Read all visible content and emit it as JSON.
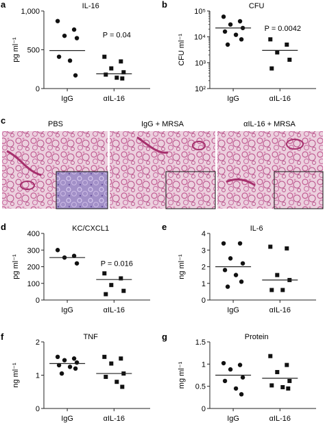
{
  "chart_data": [
    {
      "id": "a",
      "panel_letter": "a",
      "type": "scatter",
      "title": "IL-16",
      "ylabel": "pg ml⁻¹",
      "scale": "linear",
      "ylim": [
        0,
        1000
      ],
      "yticks": [
        0,
        500,
        1000
      ],
      "ytick_labels": [
        "0",
        "500",
        "1,000"
      ],
      "categories": [
        "IgG",
        "αIL-16"
      ],
      "series": [
        {
          "name": "IgG",
          "marker": "circle",
          "values": [
            870,
            760,
            680,
            650,
            410,
            360,
            170
          ],
          "mean": 490
        },
        {
          "name": "αIL-16",
          "marker": "square",
          "values": [
            410,
            350,
            260,
            210,
            180,
            140,
            130
          ],
          "mean": 190
        }
      ],
      "annotation": {
        "text": "P = 0.04",
        "series": 1,
        "value": 660
      }
    },
    {
      "id": "b",
      "panel_letter": "b",
      "type": "scatter",
      "title": "CFU",
      "ylabel": "CFU ml⁻¹",
      "scale": "log",
      "ylim": [
        100,
        100000
      ],
      "yticks": [
        100,
        1000,
        10000,
        100000
      ],
      "ytick_labels": [
        "10²",
        "10³",
        "10⁴",
        "10⁵"
      ],
      "categories": [
        "IgG",
        "αIL-16"
      ],
      "series": [
        {
          "name": "IgG",
          "marker": "circle",
          "values": [
            60000,
            40000,
            30000,
            22000,
            16000,
            12000,
            8000,
            5000
          ],
          "mean": 22000
        },
        {
          "name": "αIL-16",
          "marker": "square",
          "values": [
            8000,
            5000,
            2500,
            1300,
            600
          ],
          "mean": 3000
        }
      ],
      "annotation": {
        "text": "P = 0.0042",
        "series": 1,
        "value": 17000
      }
    },
    {
      "id": "d",
      "panel_letter": "d",
      "type": "scatter",
      "title": "KC/CXCL1",
      "ylabel": "pg ml⁻¹",
      "scale": "linear",
      "ylim": [
        0,
        400
      ],
      "yticks": [
        0,
        100,
        200,
        300,
        400
      ],
      "ytick_labels": [
        "0",
        "100",
        "200",
        "300",
        "400"
      ],
      "categories": [
        "IgG",
        "αIL-16"
      ],
      "series": [
        {
          "name": "IgG",
          "marker": "circle",
          "values": [
            300,
            265,
            255,
            220
          ],
          "mean": 255
        },
        {
          "name": "αIL-16",
          "marker": "square",
          "values": [
            160,
            130,
            90,
            55,
            35
          ],
          "mean": 123
        }
      ],
      "annotation": {
        "text": "P = 0.016",
        "series": 1,
        "value": 205
      }
    },
    {
      "id": "e",
      "panel_letter": "e",
      "type": "scatter",
      "title": "IL-6",
      "ylabel": "ng ml⁻¹",
      "scale": "linear",
      "ylim": [
        0,
        4
      ],
      "yticks": [
        0,
        1,
        2,
        3,
        4
      ],
      "ytick_labels": [
        "0",
        "1",
        "2",
        "3",
        "4"
      ],
      "categories": [
        "IgG",
        "αIL-16"
      ],
      "series": [
        {
          "name": "IgG",
          "marker": "circle",
          "values": [
            3.4,
            3.4,
            2.5,
            2.2,
            1.8,
            1.5,
            1.1,
            0.8
          ],
          "mean": 2.0
        },
        {
          "name": "αIL-16",
          "marker": "square",
          "values": [
            3.2,
            3.1,
            1.5,
            1.2,
            0.6,
            0.6
          ],
          "mean": 1.2
        }
      ],
      "annotation": null
    },
    {
      "id": "f",
      "panel_letter": "f",
      "type": "scatter",
      "title": "TNF",
      "ylabel": "ng ml⁻¹",
      "scale": "linear",
      "ylim": [
        0,
        2
      ],
      "yticks": [
        0,
        1,
        2
      ],
      "ytick_labels": [
        "0",
        "1",
        "2"
      ],
      "categories": [
        "IgG",
        "αIL-16"
      ],
      "series": [
        {
          "name": "IgG",
          "marker": "circle",
          "values": [
            1.55,
            1.5,
            1.45,
            1.38,
            1.3,
            1.25,
            1.2,
            1.05
          ],
          "mean": 1.35
        },
        {
          "name": "αIL-16",
          "marker": "square",
          "values": [
            1.55,
            1.5,
            1.35,
            1.05,
            0.95,
            0.8,
            0.65
          ],
          "mean": 1.05
        }
      ],
      "annotation": null
    },
    {
      "id": "g",
      "panel_letter": "g",
      "type": "scatter",
      "title": "Protein",
      "ylabel": "mg ml⁻¹",
      "scale": "linear",
      "ylim": [
        0,
        1.5
      ],
      "yticks": [
        0,
        0.5,
        1,
        1.5
      ],
      "ytick_labels": [
        "0",
        "0.5",
        "1",
        "1.5"
      ],
      "categories": [
        "IgG",
        "αIL-16"
      ],
      "series": [
        {
          "name": "IgG",
          "marker": "circle",
          "values": [
            1.02,
            0.98,
            0.88,
            0.7,
            0.62,
            0.45,
            0.32
          ],
          "mean": 0.75
        },
        {
          "name": "αIL-16",
          "marker": "square",
          "values": [
            1.18,
            0.98,
            0.82,
            0.62,
            0.52,
            0.48,
            0.45
          ],
          "mean": 0.68
        }
      ],
      "annotation": null
    }
  ],
  "histology": {
    "panel_letter": "c",
    "images": [
      {
        "label": "PBS"
      },
      {
        "label": "IgG + MRSA"
      },
      {
        "label": "αIL-16 + MRSA"
      }
    ]
  },
  "colors": {
    "marker": "#111111",
    "tissue_bg": "#e6c3d6",
    "tissue_dark": "#b03a78",
    "inset_bg": "#9c88c2"
  }
}
